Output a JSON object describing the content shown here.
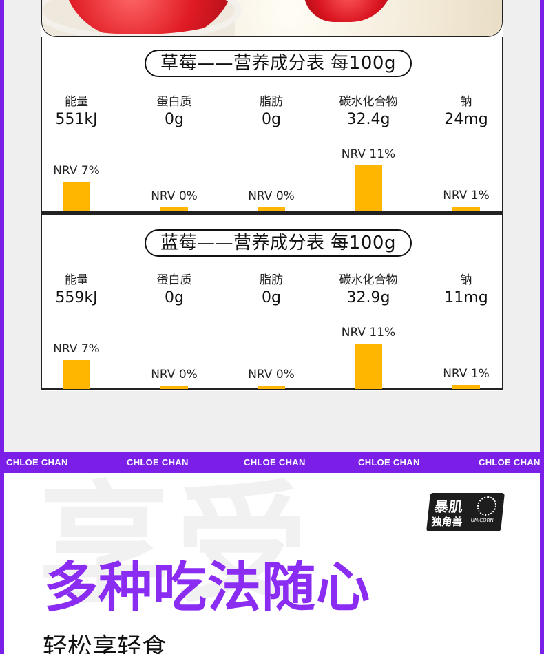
{
  "colors": {
    "frame": "#7a1ee8",
    "bar": "#ffb600",
    "headline": "#8b2cf2",
    "panel": "#efefef"
  },
  "tables": [
    {
      "title": "草莓——营养成分表 每100g",
      "nutrients": [
        {
          "label": "能量",
          "value": "551kJ",
          "nrv": "NRV 7%",
          "nrv_percent": 7
        },
        {
          "label": "蛋白质",
          "value": "0g",
          "nrv": "NRV 0%",
          "nrv_percent": 0
        },
        {
          "label": "脂肪",
          "value": "0g",
          "nrv": "NRV 0%",
          "nrv_percent": 0
        },
        {
          "label": "碳水化合物",
          "value": "32.4g",
          "nrv": "NRV 11%",
          "nrv_percent": 11
        },
        {
          "label": "钠",
          "value": "24mg",
          "nrv": "NRV 1%",
          "nrv_percent": 1
        }
      ]
    },
    {
      "title": "蓝莓——营养成分表 每100g",
      "nutrients": [
        {
          "label": "能量",
          "value": "559kJ",
          "nrv": "NRV 7%",
          "nrv_percent": 7
        },
        {
          "label": "蛋白质",
          "value": "0g",
          "nrv": "NRV 0%",
          "nrv_percent": 0
        },
        {
          "label": "脂肪",
          "value": "0g",
          "nrv": "NRV 0%",
          "nrv_percent": 0
        },
        {
          "label": "碳水化合物",
          "value": "32.9g",
          "nrv": "NRV 11%",
          "nrv_percent": 11
        },
        {
          "label": "钠",
          "value": "11mg",
          "nrv": "NRV 1%",
          "nrv_percent": 1
        }
      ]
    }
  ],
  "band": {
    "items": [
      "CHLOE CHAN",
      "CHLOE CHAN",
      "CHLOE CHAN",
      "CHLOE CHAN",
      "CHLOE CHAN"
    ]
  },
  "bottom": {
    "ghost_text": "享受",
    "logo_line1": "暴肌",
    "logo_line2": "独角兽",
    "logo_small": "UNICORN",
    "headline": "多种吃法随心",
    "subline": "轻松享轻食"
  }
}
